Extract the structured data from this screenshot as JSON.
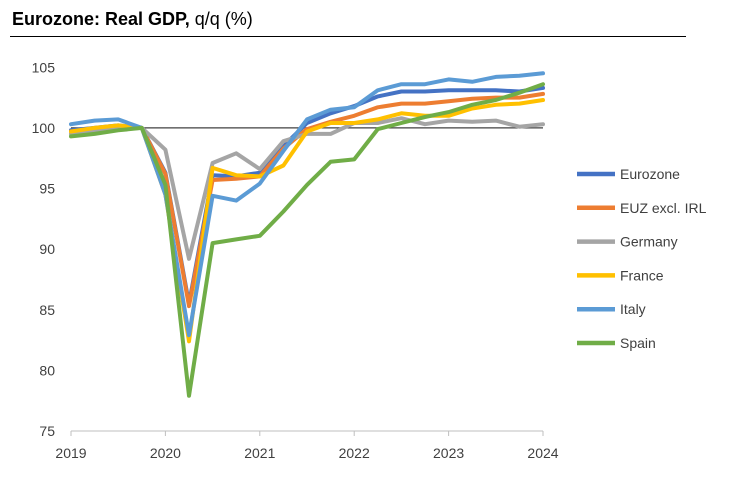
{
  "title": "Eurozone: Real GDP,",
  "subtitle": "q/q (%)",
  "chart_data": {
    "type": "line",
    "title": "Eurozone: Real GDP, q/q (%)",
    "xlabel": "",
    "ylabel": "",
    "ylim": [
      75,
      107
    ],
    "yticks": [
      75,
      80,
      85,
      90,
      95,
      100,
      105
    ],
    "xticks": [
      "2019",
      "2020",
      "2021",
      "2022",
      "2023",
      "2024"
    ],
    "reference_line": 100,
    "legend_position": "right",
    "grid": false,
    "x": [
      2019.0,
      2019.25,
      2019.5,
      2019.75,
      2020.0,
      2020.25,
      2020.5,
      2020.75,
      2021.0,
      2021.25,
      2021.5,
      2021.75,
      2022.0,
      2022.25,
      2022.5,
      2022.75,
      2023.0,
      2023.25,
      2023.5,
      2023.75,
      2024.0
    ],
    "series": [
      {
        "name": "Eurozone",
        "color": "#4472C4",
        "values": [
          99.8,
          100.0,
          100.2,
          100.0,
          96.3,
          85.5,
          96.1,
          96.0,
          96.3,
          98.5,
          100.4,
          101.2,
          101.8,
          102.6,
          103.0,
          103.0,
          103.1,
          103.1,
          103.1,
          103.0,
          103.3
        ]
      },
      {
        "name": "EUZ excl. IRL",
        "color": "#ED7D31",
        "values": [
          99.7,
          99.9,
          100.1,
          100.0,
          96.2,
          85.3,
          95.7,
          95.8,
          96.0,
          98.3,
          99.9,
          100.5,
          101.0,
          101.7,
          102.0,
          102.0,
          102.2,
          102.4,
          102.5,
          102.5,
          102.8
        ]
      },
      {
        "name": "Germany",
        "color": "#A5A5A5",
        "values": [
          99.5,
          99.8,
          99.9,
          100.0,
          98.2,
          89.2,
          97.1,
          97.9,
          96.6,
          98.9,
          99.5,
          99.5,
          100.4,
          100.4,
          100.8,
          100.3,
          100.6,
          100.5,
          100.6,
          100.1,
          100.3
        ]
      },
      {
        "name": "France",
        "color": "#FFC000",
        "values": [
          99.7,
          100.0,
          100.2,
          100.0,
          94.5,
          82.4,
          96.7,
          96.1,
          96.0,
          96.9,
          99.7,
          100.4,
          100.4,
          100.7,
          101.2,
          101.0,
          101.0,
          101.6,
          101.9,
          102.0,
          102.3
        ]
      },
      {
        "name": "Italy",
        "color": "#5B9BD5",
        "values": [
          100.3,
          100.6,
          100.7,
          100.0,
          94.5,
          82.9,
          94.4,
          94.0,
          95.4,
          98.1,
          100.7,
          101.5,
          101.7,
          103.1,
          103.6,
          103.6,
          104.0,
          103.8,
          104.2,
          104.3,
          104.5
        ]
      },
      {
        "name": "Spain",
        "color": "#70AD47",
        "values": [
          99.3,
          99.5,
          99.8,
          100.0,
          95.3,
          77.9,
          90.5,
          90.8,
          91.1,
          93.1,
          95.3,
          97.2,
          97.4,
          99.9,
          100.4,
          100.9,
          101.3,
          101.9,
          102.3,
          102.9,
          103.6
        ]
      }
    ]
  }
}
